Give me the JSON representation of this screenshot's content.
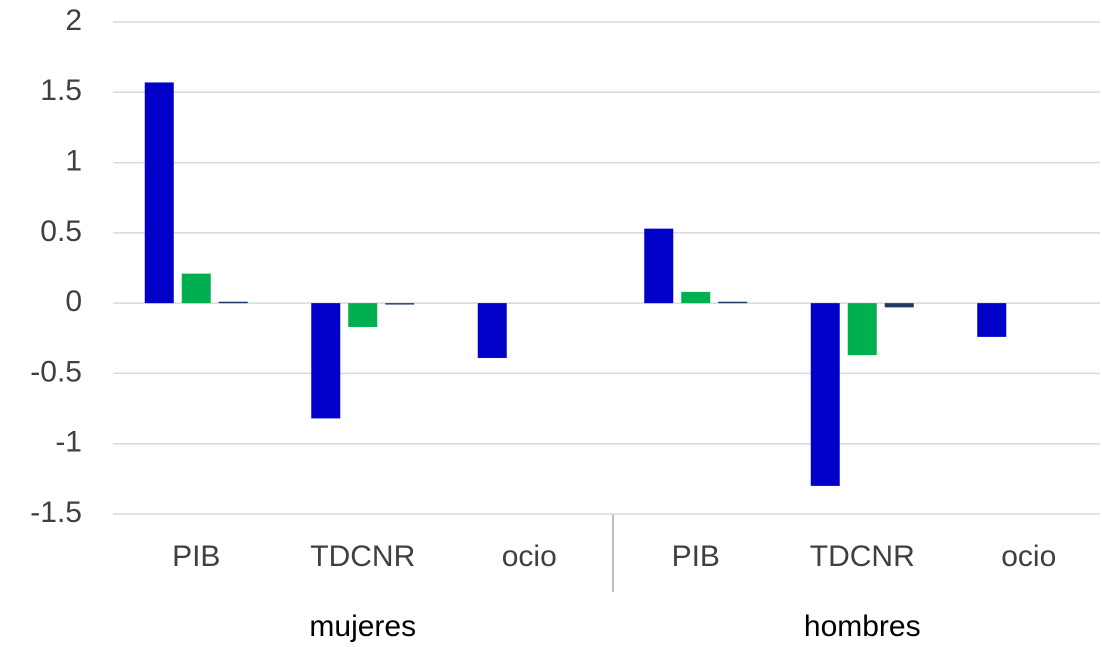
{
  "chart_data": {
    "type": "bar",
    "groups": [
      {
        "label": "mujeres",
        "categories": [
          "PIB",
          "TDCNR",
          "ocio"
        ]
      },
      {
        "label": "hombres",
        "categories": [
          "PIB",
          "TDCNR",
          "ocio"
        ]
      }
    ],
    "series": [
      {
        "color": "#0000c8",
        "values": [
          1.57,
          -0.82,
          -0.39,
          0.53,
          -1.3,
          -0.24
        ]
      },
      {
        "color": "#00b050",
        "values": [
          0.21,
          -0.17,
          null,
          0.08,
          -0.37,
          null
        ]
      },
      {
        "color": "#1f3864",
        "values": [
          0.01,
          -0.01,
          null,
          0.01,
          -0.03,
          null
        ]
      }
    ],
    "ylim": [
      -1.5,
      2
    ],
    "yticks": [
      -1.5,
      -1,
      -0.5,
      0,
      0.5,
      1,
      1.5,
      2
    ],
    "grid": true
  }
}
